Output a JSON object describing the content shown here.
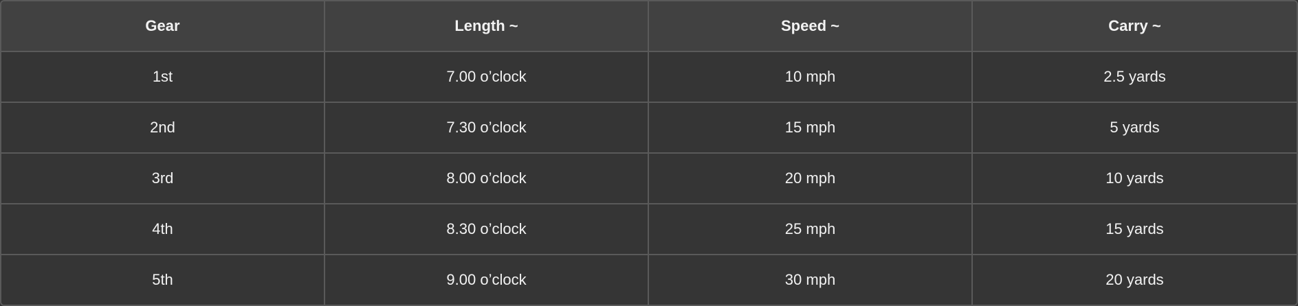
{
  "table": {
    "headers": [
      "Gear",
      "Length ~",
      "Speed ~",
      "Carry ~"
    ],
    "rows": [
      [
        "1st",
        "7.00 o’clock",
        "10 mph",
        "2.5 yards"
      ],
      [
        "2nd",
        "7.30 o’clock",
        "15 mph",
        "5 yards"
      ],
      [
        "3rd",
        "8.00 o’clock",
        "20 mph",
        "10 yards"
      ],
      [
        "4th",
        "8.30 o’clock",
        "25 mph",
        "15 yards"
      ],
      [
        "5th",
        "9.00 o’clock",
        "30 mph",
        "20 yards"
      ]
    ]
  },
  "colors": {
    "header_bg": "#414141",
    "row_bg": "#353535",
    "border": "#5a5a5a",
    "text": "#f2f2f2"
  }
}
